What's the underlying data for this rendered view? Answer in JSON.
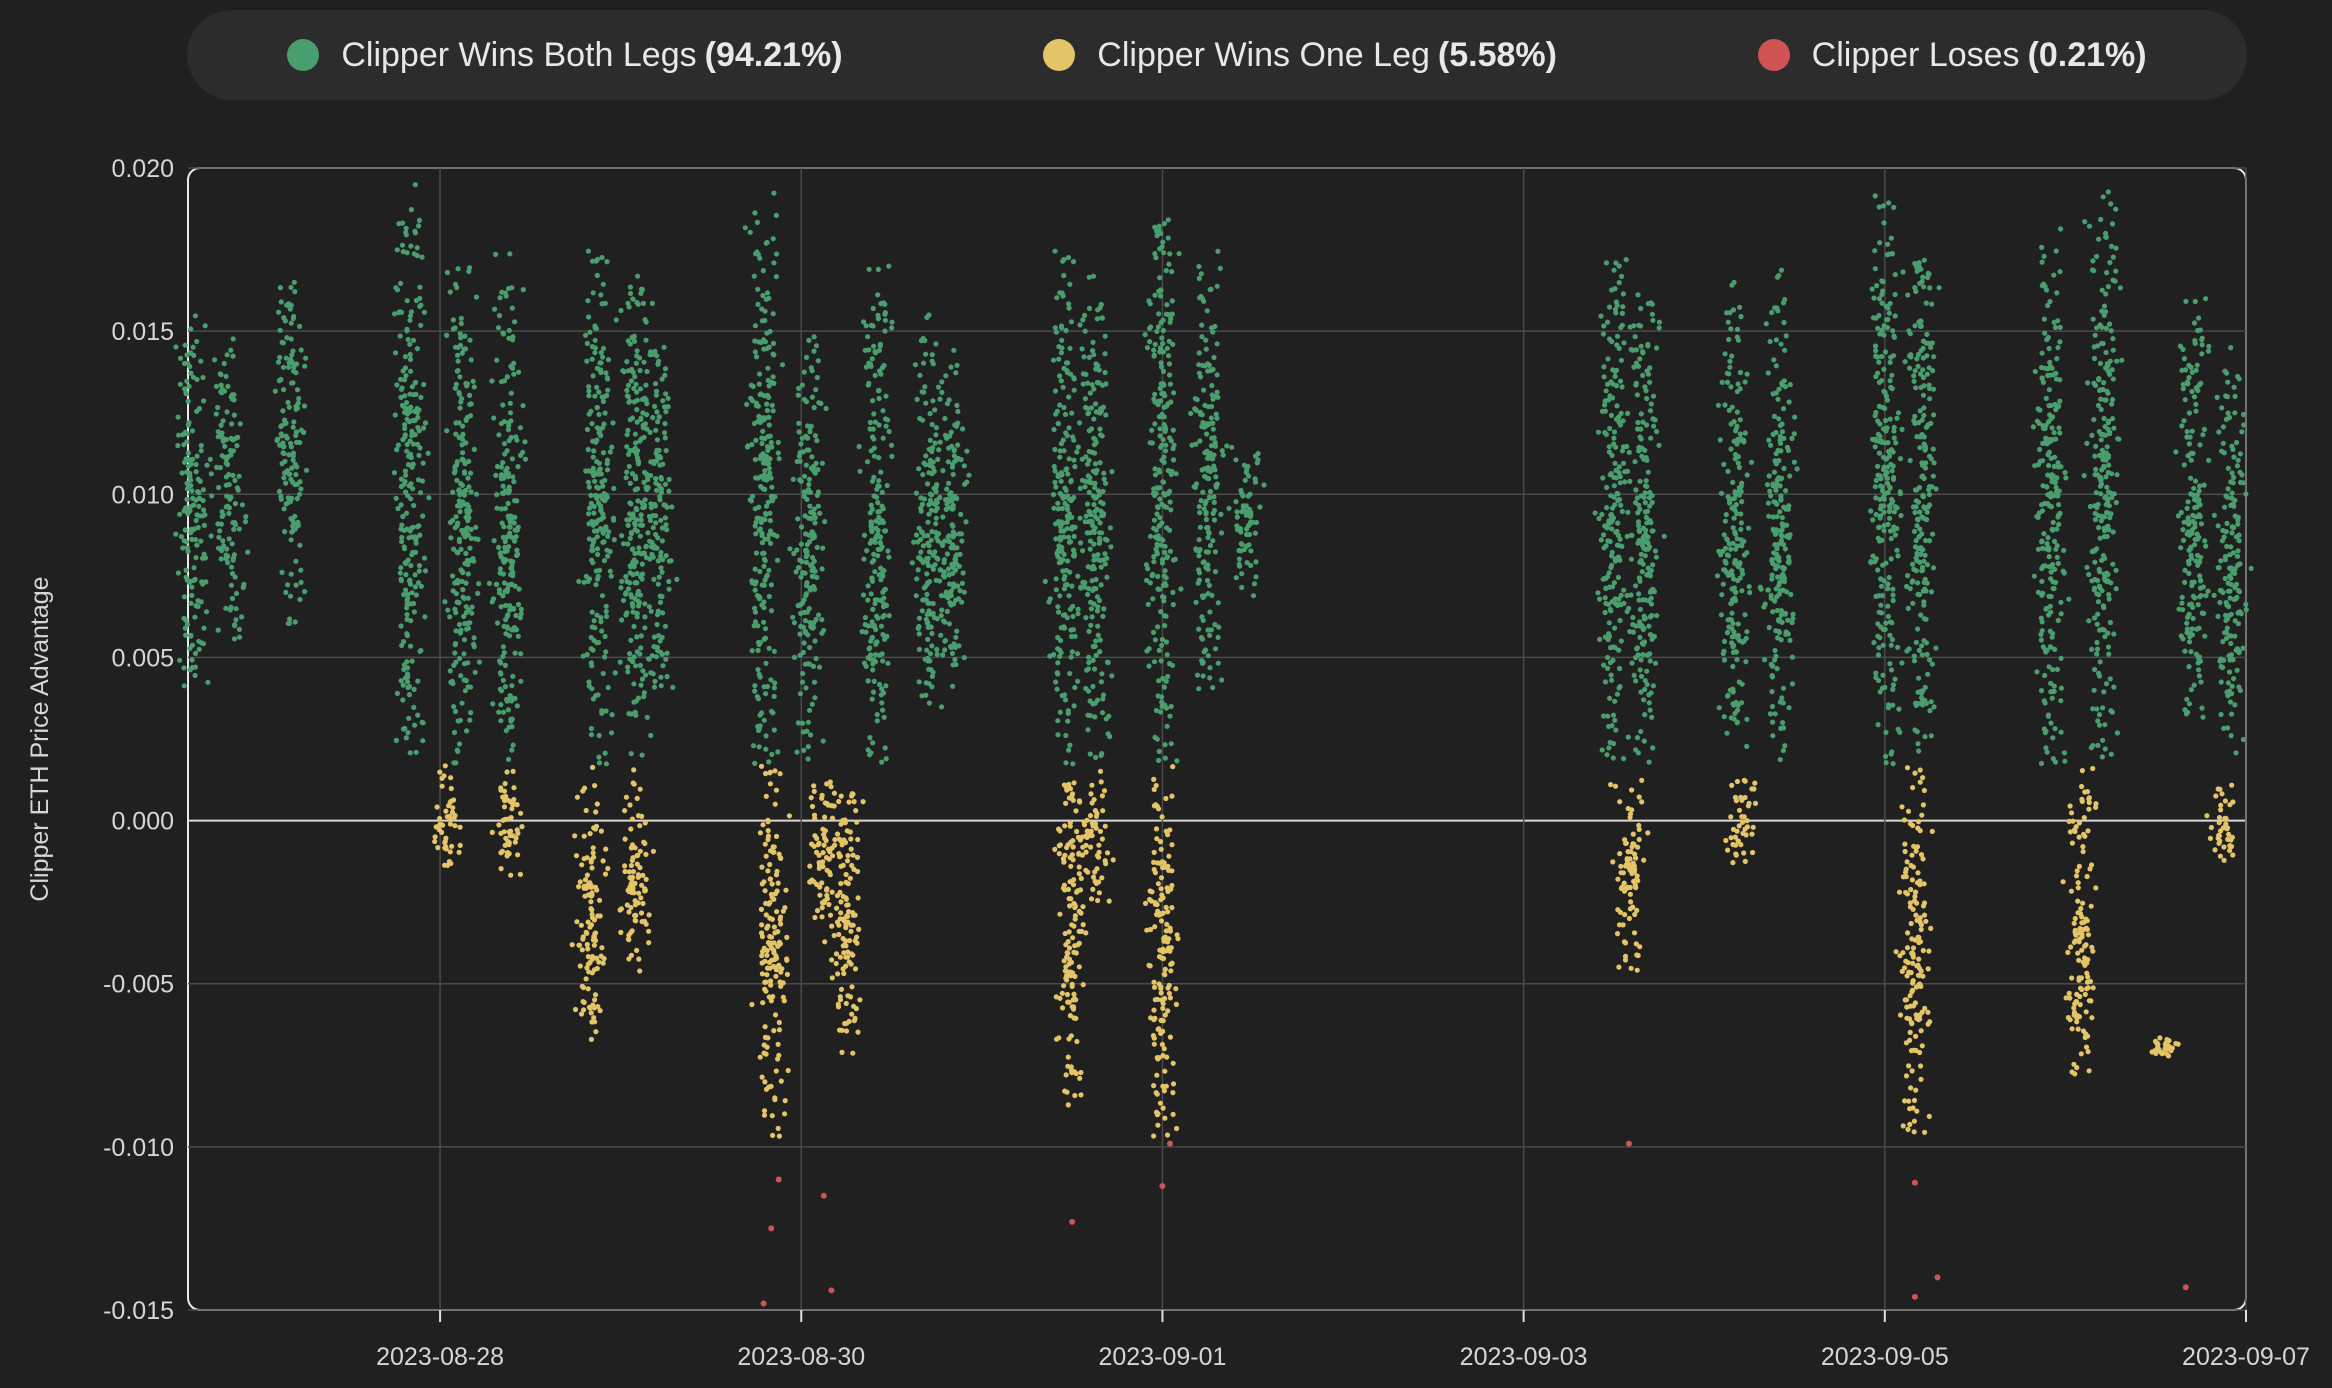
{
  "legend": {
    "items": [
      {
        "label": "Clipper Wins Both Legs",
        "pct": "(94.21%)",
        "color": "#4a9e6e"
      },
      {
        "label": "Clipper Wins One Leg",
        "pct": "(5.58%)",
        "color": "#e3c467"
      },
      {
        "label": "Clipper Loses",
        "pct": "(0.21%)",
        "color": "#cf5454"
      }
    ]
  },
  "chart_data": {
    "type": "scatter",
    "title": "",
    "xlabel": "",
    "ylabel": "Clipper ETH Price Advantage",
    "xlim": [
      "2023-08-26T14:30",
      "2023-09-07T00:00"
    ],
    "ylim": [
      -0.015,
      0.02
    ],
    "x_ticks": [
      "2023-08-28",
      "2023-08-30",
      "2023-09-01",
      "2023-09-03",
      "2023-09-05",
      "2023-09-07"
    ],
    "y_ticks": [
      "0.020",
      "0.015",
      "0.010",
      "0.005",
      "0.000",
      "-0.005",
      "-0.010",
      "-0.015"
    ],
    "grid": true,
    "legend_position": "top",
    "series": [
      {
        "name": "Clipper Wins Both Legs",
        "color": "#4a9e6e",
        "clusters": [
          {
            "x": "2023-08-26T15:00",
            "y_range": [
              0.004,
              0.0155
            ]
          },
          {
            "x": "2023-08-26T20:00",
            "y_range": [
              0.0055,
              0.015
            ]
          },
          {
            "x": "2023-08-27T04:00",
            "y_range": [
              0.006,
              0.0165
            ]
          },
          {
            "x": "2023-08-27T20:00",
            "y_range": [
              0.002,
              0.0195
            ]
          },
          {
            "x": "2023-08-28T03:00",
            "y_range": [
              0.0017,
              0.0175
            ]
          },
          {
            "x": "2023-08-28T09:00",
            "y_range": [
              0.0017,
              0.0175
            ]
          },
          {
            "x": "2023-08-28T21:00",
            "y_range": [
              0.0017,
              0.0175
            ]
          },
          {
            "x": "2023-08-29T02:00",
            "y_range": [
              0.0017,
              0.0175
            ]
          },
          {
            "x": "2023-08-29T05:00",
            "y_range": [
              0.004,
              0.015
            ]
          },
          {
            "x": "2023-08-29T19:00",
            "y_range": [
              0.0017,
              0.0193
            ]
          },
          {
            "x": "2023-08-30T01:00",
            "y_range": [
              0.0017,
              0.015
            ]
          },
          {
            "x": "2023-08-30T10:00",
            "y_range": [
              0.0017,
              0.017
            ]
          },
          {
            "x": "2023-08-30T17:00",
            "y_range": [
              0.003,
              0.0155
            ]
          },
          {
            "x": "2023-08-30T20:00",
            "y_range": [
              0.004,
              0.0145
            ]
          },
          {
            "x": "2023-08-31T11:00",
            "y_range": [
              0.0017,
              0.0175
            ]
          },
          {
            "x": "2023-08-31T15:00",
            "y_range": [
              0.0017,
              0.017
            ]
          },
          {
            "x": "2023-09-01T00:00",
            "y_range": [
              0.0017,
              0.0192
            ]
          },
          {
            "x": "2023-09-01T06:00",
            "y_range": [
              0.004,
              0.0175
            ]
          },
          {
            "x": "2023-09-01T11:00",
            "y_range": [
              0.0068,
              0.0118
            ]
          },
          {
            "x": "2023-09-03T12:00",
            "y_range": [
              0.0017,
              0.0172
            ]
          },
          {
            "x": "2023-09-03T16:00",
            "y_range": [
              0.0017,
              0.017
            ]
          },
          {
            "x": "2023-09-04T04:00",
            "y_range": [
              0.0017,
              0.0165
            ]
          },
          {
            "x": "2023-09-04T10:00",
            "y_range": [
              0.0017,
              0.017
            ]
          },
          {
            "x": "2023-09-05T00:00",
            "y_range": [
              0.0017,
              0.0192
            ]
          },
          {
            "x": "2023-09-05T05:00",
            "y_range": [
              0.002,
              0.018
            ]
          },
          {
            "x": "2023-09-05T22:00",
            "y_range": [
              0.0017,
              0.0182
            ]
          },
          {
            "x": "2023-09-06T05:00",
            "y_range": [
              0.0017,
              0.0195
            ]
          },
          {
            "x": "2023-09-06T17:00",
            "y_range": [
              0.003,
              0.016
            ]
          },
          {
            "x": "2023-09-06T22:00",
            "y_range": [
              0.002,
              0.0145
            ]
          }
        ]
      },
      {
        "name": "Clipper Wins One Leg",
        "color": "#e3c467",
        "clusters": [
          {
            "x": "2023-08-28T01:00",
            "y_range": [
              -0.0017,
              0.0017
            ]
          },
          {
            "x": "2023-08-28T09:00",
            "y_range": [
              -0.002,
              0.0017
            ]
          },
          {
            "x": "2023-08-28T20:00",
            "y_range": [
              -0.0068,
              0.0017
            ]
          },
          {
            "x": "2023-08-29T02:00",
            "y_range": [
              -0.0048,
              0.0017
            ]
          },
          {
            "x": "2023-08-29T20:00",
            "y_range": [
              -0.0097,
              0.0017
            ]
          },
          {
            "x": "2023-08-30T03:00",
            "y_range": [
              -0.0038,
              0.0016
            ]
          },
          {
            "x": "2023-08-30T06:00",
            "y_range": [
              -0.0073,
              0.0015
            ]
          },
          {
            "x": "2023-08-31T12:00",
            "y_range": [
              -0.0088,
              0.0017
            ]
          },
          {
            "x": "2023-08-31T15:00",
            "y_range": [
              -0.0025,
              0.0017
            ]
          },
          {
            "x": "2023-09-01T00:00",
            "y_range": [
              -0.0097,
              0.0017
            ]
          },
          {
            "x": "2023-09-03T14:00",
            "y_range": [
              -0.0047,
              0.0015
            ]
          },
          {
            "x": "2023-09-04T05:00",
            "y_range": [
              -0.0017,
              0.0015
            ]
          },
          {
            "x": "2023-09-05T04:00",
            "y_range": [
              -0.0097,
              0.0017
            ]
          },
          {
            "x": "2023-09-06T02:00",
            "y_range": [
              -0.008,
              0.0016
            ]
          },
          {
            "x": "2023-09-06T13:00",
            "y_range": [
              -0.0073,
              -0.0066
            ]
          },
          {
            "x": "2023-09-06T21:00",
            "y_range": [
              -0.0015,
              0.0013
            ]
          }
        ]
      },
      {
        "name": "Clipper Loses",
        "color": "#cf5454",
        "points": [
          {
            "x": "2023-08-29T19:00",
            "y": -0.0148
          },
          {
            "x": "2023-08-29T21:00",
            "y": -0.011
          },
          {
            "x": "2023-08-29T20:00",
            "y": -0.0125
          },
          {
            "x": "2023-08-30T03:00",
            "y": -0.0115
          },
          {
            "x": "2023-08-30T04:00",
            "y": -0.0144
          },
          {
            "x": "2023-08-31T12:00",
            "y": -0.0123
          },
          {
            "x": "2023-09-01T00:00",
            "y": -0.0112
          },
          {
            "x": "2023-09-01T01:00",
            "y": -0.0099
          },
          {
            "x": "2023-09-03T14:00",
            "y": -0.0099
          },
          {
            "x": "2023-09-05T04:00",
            "y": -0.0111
          },
          {
            "x": "2023-09-05T04:00",
            "y": -0.0146
          },
          {
            "x": "2023-09-05T07:00",
            "y": -0.014
          },
          {
            "x": "2023-09-06T16:00",
            "y": -0.0143
          }
        ]
      }
    ]
  }
}
